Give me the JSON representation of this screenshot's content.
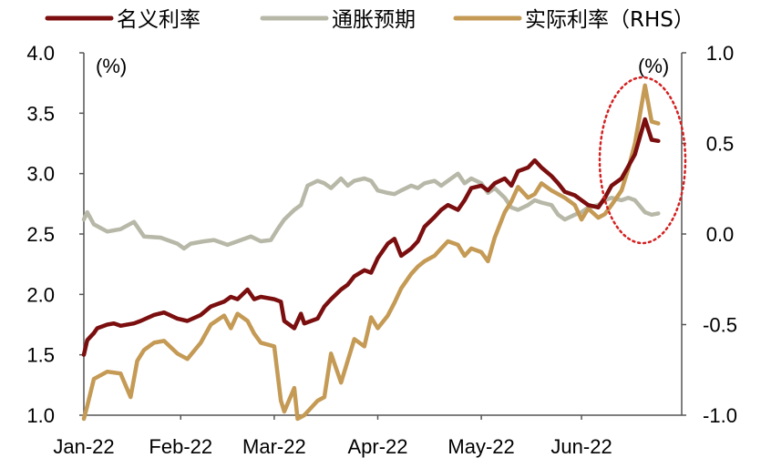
{
  "chart_data": {
    "type": "line",
    "units": {
      "left": "(%)",
      "right": "(%)"
    },
    "axes": {
      "left": {
        "ylim": [
          1.0,
          4.0
        ],
        "ticks": [
          "4.0",
          "3.5",
          "3.0",
          "2.5",
          "2.0",
          "1.5",
          "1.0"
        ]
      },
      "right": {
        "ylim": [
          -1.0,
          1.0
        ],
        "ticks": [
          "1.0",
          "0.5",
          "0.0",
          "-0.5",
          "-1.0"
        ]
      },
      "x_ticks": [
        {
          "label": "Jan-22",
          "date": "2022-01-03"
        },
        {
          "label": "Feb-22",
          "date": "2022-02-01"
        },
        {
          "label": "Mar-22",
          "date": "2022-03-01"
        },
        {
          "label": "Apr-22",
          "date": "2022-04-01"
        },
        {
          "label": "May-22",
          "date": "2022-05-02"
        },
        {
          "label": "Jun-22",
          "date": "2022-06-01"
        }
      ],
      "grid": false
    },
    "legend_position": "top",
    "series": [
      {
        "name": "名义利率",
        "axis": "left",
        "color": "#7B0E0E",
        "points": [
          [
            "2022-01-03",
            1.5
          ],
          [
            "2022-01-04",
            1.62
          ],
          [
            "2022-01-06",
            1.68
          ],
          [
            "2022-01-07",
            1.72
          ],
          [
            "2022-01-10",
            1.75
          ],
          [
            "2022-01-12",
            1.76
          ],
          [
            "2022-01-14",
            1.74
          ],
          [
            "2022-01-18",
            1.76
          ],
          [
            "2022-01-20",
            1.78
          ],
          [
            "2022-01-24",
            1.83
          ],
          [
            "2022-01-27",
            1.85
          ],
          [
            "2022-01-31",
            1.8
          ],
          [
            "2022-02-03",
            1.78
          ],
          [
            "2022-02-07",
            1.83
          ],
          [
            "2022-02-10",
            1.9
          ],
          [
            "2022-02-14",
            1.94
          ],
          [
            "2022-02-16",
            1.98
          ],
          [
            "2022-02-18",
            1.96
          ],
          [
            "2022-02-21",
            2.04
          ],
          [
            "2022-02-23",
            1.96
          ],
          [
            "2022-02-25",
            1.98
          ],
          [
            "2022-03-01",
            1.96
          ],
          [
            "2022-03-03",
            1.94
          ],
          [
            "2022-03-04",
            1.78
          ],
          [
            "2022-03-07",
            1.72
          ],
          [
            "2022-03-09",
            1.84
          ],
          [
            "2022-03-10",
            1.76
          ],
          [
            "2022-03-14",
            1.8
          ],
          [
            "2022-03-16",
            1.9
          ],
          [
            "2022-03-18",
            1.96
          ],
          [
            "2022-03-21",
            2.04
          ],
          [
            "2022-03-23",
            2.08
          ],
          [
            "2022-03-25",
            2.15
          ],
          [
            "2022-03-28",
            2.2
          ],
          [
            "2022-03-30",
            2.18
          ],
          [
            "2022-04-01",
            2.3
          ],
          [
            "2022-04-04",
            2.42
          ],
          [
            "2022-04-06",
            2.46
          ],
          [
            "2022-04-08",
            2.32
          ],
          [
            "2022-04-11",
            2.38
          ],
          [
            "2022-04-13",
            2.44
          ],
          [
            "2022-04-15",
            2.56
          ],
          [
            "2022-04-18",
            2.64
          ],
          [
            "2022-04-20",
            2.7
          ],
          [
            "2022-04-22",
            2.74
          ],
          [
            "2022-04-25",
            2.7
          ],
          [
            "2022-04-27",
            2.78
          ],
          [
            "2022-04-29",
            2.88
          ],
          [
            "2022-05-02",
            2.9
          ],
          [
            "2022-05-04",
            2.86
          ],
          [
            "2022-05-06",
            2.92
          ],
          [
            "2022-05-09",
            2.96
          ],
          [
            "2022-05-11",
            2.9
          ],
          [
            "2022-05-13",
            3.02
          ],
          [
            "2022-05-16",
            3.05
          ],
          [
            "2022-05-18",
            3.11
          ],
          [
            "2022-05-20",
            3.05
          ],
          [
            "2022-05-23",
            2.98
          ],
          [
            "2022-05-25",
            2.92
          ],
          [
            "2022-05-27",
            2.85
          ],
          [
            "2022-05-30",
            2.82
          ],
          [
            "2022-06-01",
            2.78
          ],
          [
            "2022-06-03",
            2.74
          ],
          [
            "2022-06-06",
            2.72
          ],
          [
            "2022-06-08",
            2.8
          ],
          [
            "2022-06-10",
            2.9
          ],
          [
            "2022-06-13",
            2.96
          ],
          [
            "2022-06-15",
            3.06
          ],
          [
            "2022-06-17",
            3.16
          ],
          [
            "2022-06-20",
            3.45
          ],
          [
            "2022-06-22",
            3.28
          ],
          [
            "2022-06-24",
            3.27
          ]
        ]
      },
      {
        "name": "通胀预期",
        "axis": "left",
        "color": "#B8B8A8",
        "points": [
          [
            "2022-01-03",
            2.62
          ],
          [
            "2022-01-04",
            2.68
          ],
          [
            "2022-01-06",
            2.58
          ],
          [
            "2022-01-10",
            2.52
          ],
          [
            "2022-01-14",
            2.54
          ],
          [
            "2022-01-18",
            2.6
          ],
          [
            "2022-01-21",
            2.48
          ],
          [
            "2022-01-26",
            2.47
          ],
          [
            "2022-01-31",
            2.42
          ],
          [
            "2022-02-02",
            2.38
          ],
          [
            "2022-02-04",
            2.42
          ],
          [
            "2022-02-08",
            2.44
          ],
          [
            "2022-02-11",
            2.45
          ],
          [
            "2022-02-15",
            2.41
          ],
          [
            "2022-02-18",
            2.44
          ],
          [
            "2022-02-22",
            2.48
          ],
          [
            "2022-02-25",
            2.44
          ],
          [
            "2022-02-28",
            2.45
          ],
          [
            "2022-03-02",
            2.54
          ],
          [
            "2022-03-04",
            2.62
          ],
          [
            "2022-03-07",
            2.7
          ],
          [
            "2022-03-09",
            2.74
          ],
          [
            "2022-03-11",
            2.9
          ],
          [
            "2022-03-14",
            2.94
          ],
          [
            "2022-03-16",
            2.92
          ],
          [
            "2022-03-18",
            2.88
          ],
          [
            "2022-03-21",
            2.96
          ],
          [
            "2022-03-23",
            2.9
          ],
          [
            "2022-03-25",
            2.94
          ],
          [
            "2022-03-28",
            2.96
          ],
          [
            "2022-03-30",
            2.94
          ],
          [
            "2022-04-01",
            2.86
          ],
          [
            "2022-04-04",
            2.84
          ],
          [
            "2022-04-06",
            2.83
          ],
          [
            "2022-04-08",
            2.86
          ],
          [
            "2022-04-11",
            2.9
          ],
          [
            "2022-04-13",
            2.88
          ],
          [
            "2022-04-15",
            2.92
          ],
          [
            "2022-04-18",
            2.94
          ],
          [
            "2022-04-20",
            2.9
          ],
          [
            "2022-04-22",
            2.94
          ],
          [
            "2022-04-25",
            3.0
          ],
          [
            "2022-04-27",
            2.92
          ],
          [
            "2022-04-29",
            2.96
          ],
          [
            "2022-05-02",
            2.92
          ],
          [
            "2022-05-04",
            2.84
          ],
          [
            "2022-05-06",
            2.88
          ],
          [
            "2022-05-09",
            2.8
          ],
          [
            "2022-05-11",
            2.72
          ],
          [
            "2022-05-13",
            2.7
          ],
          [
            "2022-05-16",
            2.74
          ],
          [
            "2022-05-18",
            2.78
          ],
          [
            "2022-05-20",
            2.76
          ],
          [
            "2022-05-23",
            2.74
          ],
          [
            "2022-05-25",
            2.66
          ],
          [
            "2022-05-27",
            2.62
          ],
          [
            "2022-05-30",
            2.66
          ],
          [
            "2022-06-01",
            2.68
          ],
          [
            "2022-06-03",
            2.72
          ],
          [
            "2022-06-06",
            2.74
          ],
          [
            "2022-06-08",
            2.78
          ],
          [
            "2022-06-10",
            2.8
          ],
          [
            "2022-06-13",
            2.78
          ],
          [
            "2022-06-15",
            2.8
          ],
          [
            "2022-06-17",
            2.78
          ],
          [
            "2022-06-20",
            2.68
          ],
          [
            "2022-06-22",
            2.66
          ],
          [
            "2022-06-24",
            2.67
          ]
        ]
      },
      {
        "name": "实际利率（RHS）",
        "axis": "right",
        "color": "#C49A55",
        "points": [
          [
            "2022-01-03",
            -1.02
          ],
          [
            "2022-01-04",
            -0.95
          ],
          [
            "2022-01-06",
            -0.8
          ],
          [
            "2022-01-10",
            -0.76
          ],
          [
            "2022-01-14",
            -0.77
          ],
          [
            "2022-01-17",
            -0.9
          ],
          [
            "2022-01-19",
            -0.7
          ],
          [
            "2022-01-21",
            -0.64
          ],
          [
            "2022-01-24",
            -0.6
          ],
          [
            "2022-01-27",
            -0.59
          ],
          [
            "2022-01-31",
            -0.66
          ],
          [
            "2022-02-03",
            -0.69
          ],
          [
            "2022-02-07",
            -0.6
          ],
          [
            "2022-02-10",
            -0.5
          ],
          [
            "2022-02-14",
            -0.45
          ],
          [
            "2022-02-16",
            -0.52
          ],
          [
            "2022-02-18",
            -0.44
          ],
          [
            "2022-02-21",
            -0.48
          ],
          [
            "2022-02-23",
            -0.55
          ],
          [
            "2022-02-25",
            -0.6
          ],
          [
            "2022-03-01",
            -0.62
          ],
          [
            "2022-03-03",
            -0.92
          ],
          [
            "2022-03-04",
            -0.98
          ],
          [
            "2022-03-07",
            -0.85
          ],
          [
            "2022-03-08",
            -1.02
          ],
          [
            "2022-03-10",
            -1.0
          ],
          [
            "2022-03-14",
            -0.92
          ],
          [
            "2022-03-16",
            -0.9
          ],
          [
            "2022-03-18",
            -0.66
          ],
          [
            "2022-03-21",
            -0.82
          ],
          [
            "2022-03-23",
            -0.7
          ],
          [
            "2022-03-25",
            -0.58
          ],
          [
            "2022-03-28",
            -0.62
          ],
          [
            "2022-03-30",
            -0.46
          ],
          [
            "2022-04-01",
            -0.52
          ],
          [
            "2022-04-04",
            -0.45
          ],
          [
            "2022-04-06",
            -0.38
          ],
          [
            "2022-04-08",
            -0.3
          ],
          [
            "2022-04-11",
            -0.22
          ],
          [
            "2022-04-13",
            -0.18
          ],
          [
            "2022-04-15",
            -0.15
          ],
          [
            "2022-04-18",
            -0.12
          ],
          [
            "2022-04-20",
            -0.08
          ],
          [
            "2022-04-22",
            -0.04
          ],
          [
            "2022-04-25",
            -0.06
          ],
          [
            "2022-04-27",
            -0.12
          ],
          [
            "2022-04-29",
            -0.08
          ],
          [
            "2022-05-02",
            -0.1
          ],
          [
            "2022-05-04",
            -0.15
          ],
          [
            "2022-05-06",
            -0.02
          ],
          [
            "2022-05-09",
            0.12
          ],
          [
            "2022-05-11",
            0.18
          ],
          [
            "2022-05-13",
            0.26
          ],
          [
            "2022-05-16",
            0.2
          ],
          [
            "2022-05-18",
            0.22
          ],
          [
            "2022-05-20",
            0.28
          ],
          [
            "2022-05-23",
            0.24
          ],
          [
            "2022-05-25",
            0.22
          ],
          [
            "2022-05-27",
            0.2
          ],
          [
            "2022-05-30",
            0.16
          ],
          [
            "2022-06-01",
            0.08
          ],
          [
            "2022-06-03",
            0.14
          ],
          [
            "2022-06-06",
            0.09
          ],
          [
            "2022-06-08",
            0.11
          ],
          [
            "2022-06-10",
            0.16
          ],
          [
            "2022-06-13",
            0.24
          ],
          [
            "2022-06-15",
            0.36
          ],
          [
            "2022-06-17",
            0.5
          ],
          [
            "2022-06-20",
            0.82
          ],
          [
            "2022-06-22",
            0.62
          ],
          [
            "2022-06-24",
            0.61
          ]
        ]
      }
    ]
  }
}
